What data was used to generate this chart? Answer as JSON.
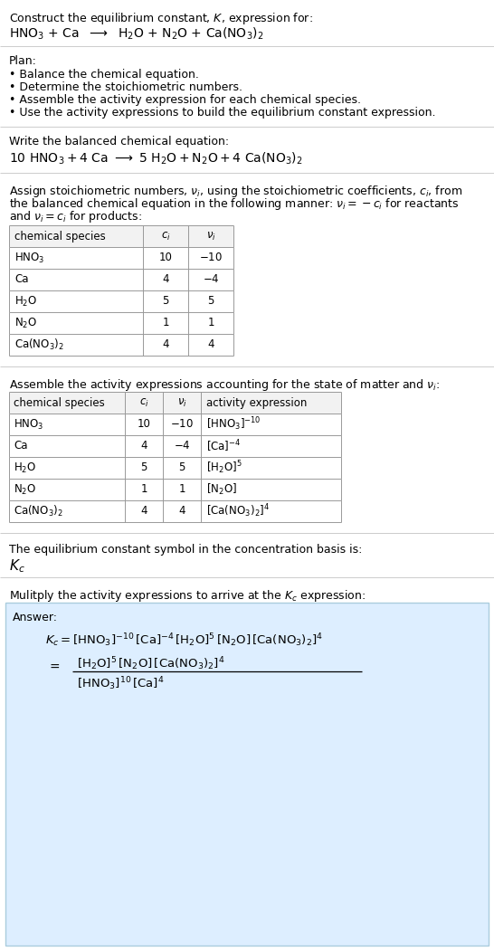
{
  "bg_color": "#ffffff",
  "text_color": "#000000",
  "title_line1": "Construct the equilibrium constant, $K$, expression for:",
  "title_line2_parts": [
    "$\\mathrm{HNO_3}$",
    " + Ca  ",
    "$\\longrightarrow$",
    "  $\\mathrm{H_2O}$",
    " + $\\mathrm{N_2O}$",
    " + $\\mathrm{Ca(NO_3)_2}$"
  ],
  "plan_header": "Plan:",
  "plan_items": [
    "\\u2022 Balance the chemical equation.",
    "\\u2022 Determine the stoichiometric numbers.",
    "\\u2022 Assemble the activity expression for each chemical species.",
    "\\u2022 Use the activity expressions to build the equilibrium constant expression."
  ],
  "balanced_header": "Write the balanced chemical equation:",
  "stoich_para": [
    "Assign stoichiometric numbers, $\\nu_i$, using the stoichiometric coefficients, $c_i$, from",
    "the balanced chemical equation in the following manner: $\\nu_i = -c_i$ for reactants",
    "and $\\nu_i = c_i$ for products:"
  ],
  "table1_headers": [
    "chemical species",
    "$c_i$",
    "$\\nu_i$"
  ],
  "table1_rows": [
    [
      "$\\mathrm{HNO_3}$",
      "10",
      "$-10$"
    ],
    [
      "Ca",
      "4",
      "$-4$"
    ],
    [
      "$\\mathrm{H_2O}$",
      "5",
      "5"
    ],
    [
      "$\\mathrm{N_2O}$",
      "1",
      "1"
    ],
    [
      "$\\mathrm{Ca(NO_3)_2}$",
      "4",
      "4"
    ]
  ],
  "activity_header": "Assemble the activity expressions accounting for the state of matter and $\\nu_i$:",
  "table2_headers": [
    "chemical species",
    "$c_i$",
    "$\\nu_i$",
    "activity expression"
  ],
  "table2_rows": [
    [
      "$\\mathrm{HNO_3}$",
      "10",
      "$-10$",
      "$[\\mathrm{HNO_3}]^{-10}$"
    ],
    [
      "Ca",
      "4",
      "$-4$",
      "$[\\mathrm{Ca}]^{-4}$"
    ],
    [
      "$\\mathrm{H_2O}$",
      "5",
      "5",
      "$[\\mathrm{H_2O}]^5$"
    ],
    [
      "$\\mathrm{N_2O}$",
      "1",
      "1",
      "$[\\mathrm{N_2O}]$"
    ],
    [
      "$\\mathrm{Ca(NO_3)_2}$",
      "4",
      "4",
      "$[\\mathrm{Ca(NO_3)_2}]^4$"
    ]
  ],
  "kc_header": "The equilibrium constant symbol in the concentration basis is:",
  "kc_symbol": "$K_c$",
  "multiply_header": "Mulitply the activity expressions to arrive at the $K_c$ expression:",
  "answer_box_color": "#ddeeff",
  "answer_box_border": "#aaccdd",
  "answer_label": "Answer:",
  "kc_eq1": "$K_c = [\\mathrm{HNO_3}]^{-10}\\,[\\mathrm{Ca}]^{-4}\\,[\\mathrm{H_2O}]^5\\,[\\mathrm{N_2O}]\\,[\\mathrm{Ca(NO_3)_2}]^4$",
  "kc_num": "$[\\mathrm{H_2O}]^5\\,[\\mathrm{N_2O}]\\,[\\mathrm{Ca(NO_3)_2}]^4$",
  "kc_den": "$[\\mathrm{HNO_3}]^{10}\\,[\\mathrm{Ca}]^4$",
  "sep_color": "#cccccc",
  "table_color": "#999999",
  "fs": 9,
  "fs_table": 8.5,
  "fs_eq": 10
}
